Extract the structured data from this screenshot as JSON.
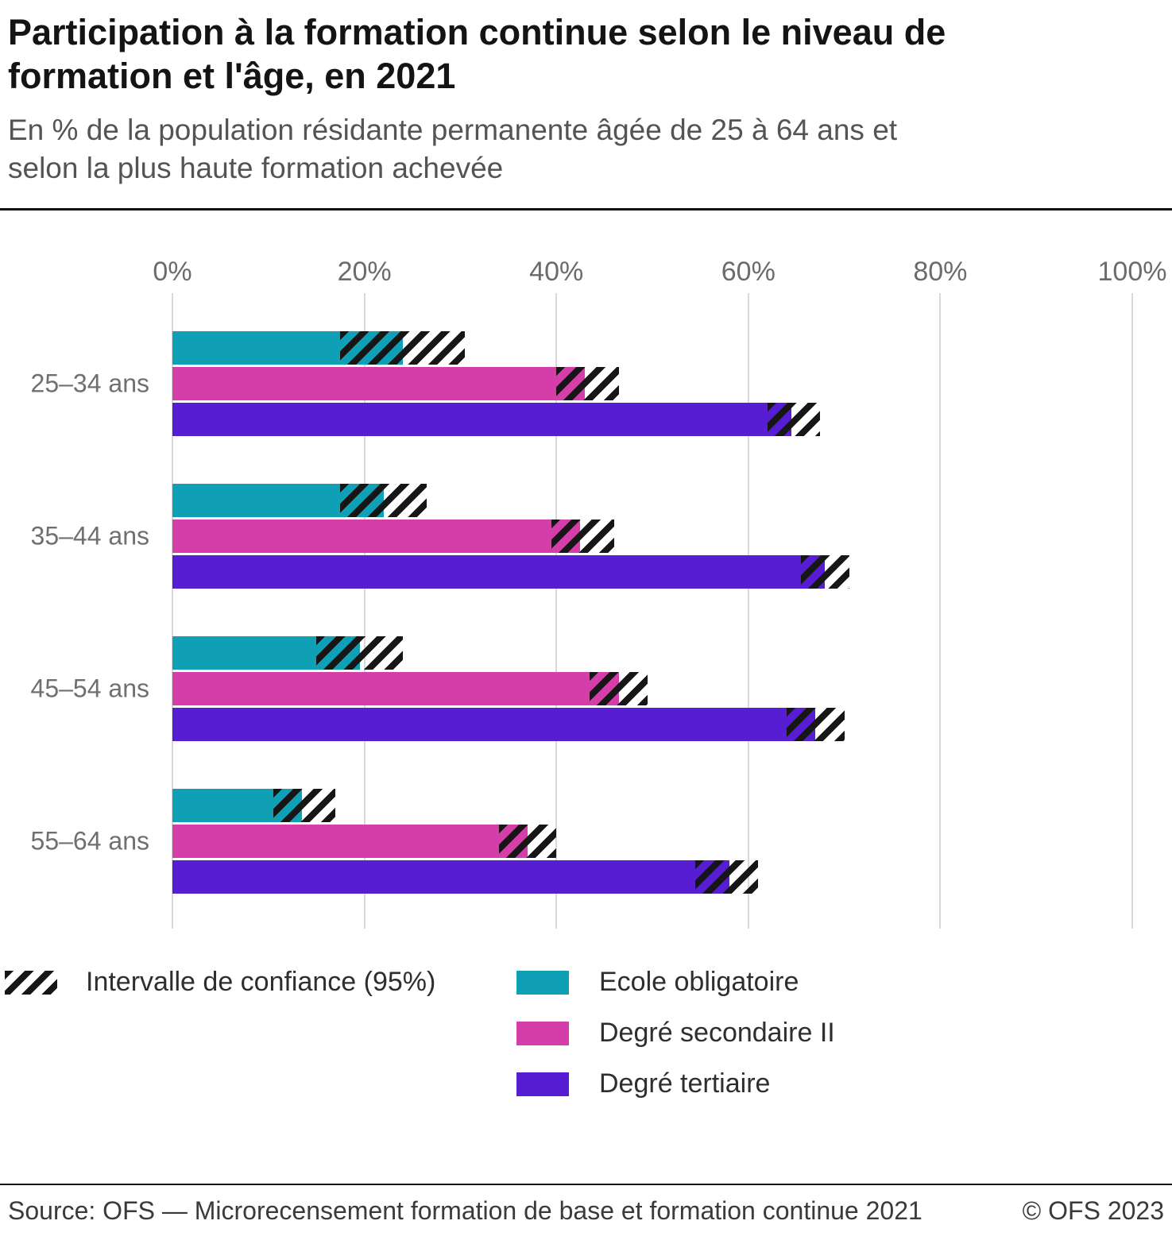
{
  "header": {
    "title": "Participation à la formation continue selon le niveau de formation et l'âge, en 2021",
    "subtitle": "En % de la population résidante permanente âgée de 25 à 64 ans et selon la plus haute formation achevée"
  },
  "chart_data": {
    "type": "bar",
    "orientation": "horizontal",
    "title": "Participation à la formation continue selon le niveau de formation et l'âge, en 2021",
    "xlabel": "",
    "ylabel": "",
    "xlim": [
      0,
      100
    ],
    "x_ticks": [
      "0%",
      "20%",
      "40%",
      "60%",
      "80%",
      "100%"
    ],
    "grid": true,
    "legend_position": "bottom",
    "categories": [
      "25–34 ans",
      "35–44 ans",
      "45–54 ans",
      "55–64 ans"
    ],
    "series": [
      {
        "name": "Ecole obligatoire",
        "color": "#10a0b6",
        "values": [
          24,
          22,
          19.5,
          13.5
        ],
        "ci_lower": [
          17.5,
          17.5,
          15,
          10.5
        ],
        "ci_upper": [
          30.5,
          26.5,
          24,
          17
        ]
      },
      {
        "name": "Degré secondaire II",
        "color": "#d53da8",
        "values": [
          43,
          42.5,
          46.5,
          37
        ],
        "ci_lower": [
          40,
          39.5,
          43.5,
          34
        ],
        "ci_upper": [
          46.5,
          46,
          49.5,
          40
        ]
      },
      {
        "name": "Degré tertiaire",
        "color": "#561dd2",
        "values": [
          64.5,
          68,
          67,
          58
        ],
        "ci_lower": [
          62,
          65.5,
          64,
          54.5
        ],
        "ci_upper": [
          67.5,
          70.5,
          70,
          61
        ]
      }
    ],
    "ci_note": "Intervalle de confiance (95%)"
  },
  "legend": {
    "ci_label": "Intervalle de confiance (95%)",
    "items": [
      "Ecole obligatoire",
      "Degré secondaire II",
      "Degré tertiaire"
    ]
  },
  "footer": {
    "source": "Source: OFS — Microrecensement formation de base et formation continue 2021",
    "copyright": "© OFS 2023"
  }
}
